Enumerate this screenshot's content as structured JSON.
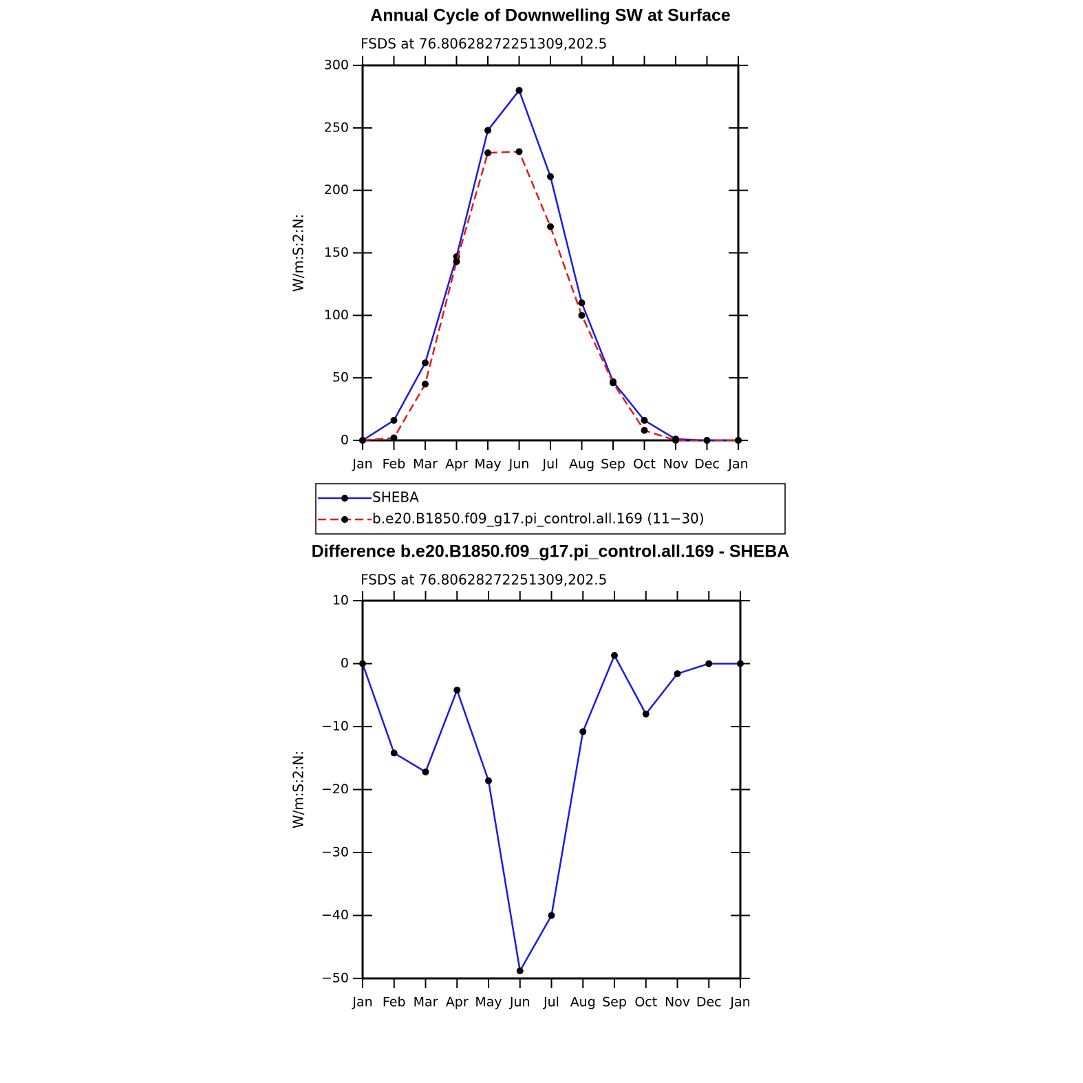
{
  "chart_data": [
    {
      "type": "line",
      "title": "Annual Cycle of Downwelling SW at Surface",
      "subtitle": "FSDS at 76.80628272251309,202.5",
      "y_label": "W/m:S:2:N:",
      "categories": [
        "Jan",
        "Feb",
        "Mar",
        "Apr",
        "May",
        "Jun",
        "Jul",
        "Aug",
        "Sep",
        "Oct",
        "Nov",
        "Dec",
        "Jan"
      ],
      "series": [
        {
          "name": "SHEBA",
          "color": "#1a1ae6",
          "dash": "solid",
          "values": [
            0,
            16,
            62,
            147,
            248,
            280,
            211,
            110,
            47,
            16,
            1,
            0,
            0
          ]
        },
        {
          "name": "b.e20.B1850.f09_g17.pi_control.all.169 (11−30)",
          "color": "#e61a1a",
          "dash": "dashed",
          "values": [
            0,
            2,
            45,
            143,
            230,
            231,
            171,
            100,
            46,
            8,
            0,
            0,
            0
          ]
        }
      ],
      "ylim": [
        0,
        300
      ],
      "yticks": [
        0,
        50,
        100,
        150,
        200,
        250,
        300
      ],
      "marker_color": "#000000",
      "legend": "below"
    },
    {
      "type": "line",
      "title": "Difference b.e20.B1850.f09_g17.pi_control.all.169 - SHEBA",
      "subtitle": "FSDS at 76.80628272251309,202.5",
      "y_label": "W/m:S:2:N:",
      "categories": [
        "Jan",
        "Feb",
        "Mar",
        "Apr",
        "May",
        "Jun",
        "Jul",
        "Aug",
        "Sep",
        "Oct",
        "Nov",
        "Dec",
        "Jan"
      ],
      "series": [
        {
          "color": "#1a1ae6",
          "dash": "solid",
          "values": [
            0,
            -14.2,
            -17.2,
            -4.2,
            -18.6,
            -48.8,
            -40,
            -10.8,
            1.3,
            -8,
            -1.6,
            0,
            0
          ]
        }
      ],
      "ylim": [
        -50,
        10
      ],
      "yticks": [
        {
          "value": -50,
          "label": "−50"
        },
        {
          "value": -40,
          "label": "−40"
        },
        {
          "value": -30,
          "label": "−30"
        },
        {
          "value": -20,
          "label": "−20"
        },
        {
          "value": -10,
          "label": "−10"
        },
        0,
        10
      ],
      "marker_color": "#000000"
    }
  ]
}
